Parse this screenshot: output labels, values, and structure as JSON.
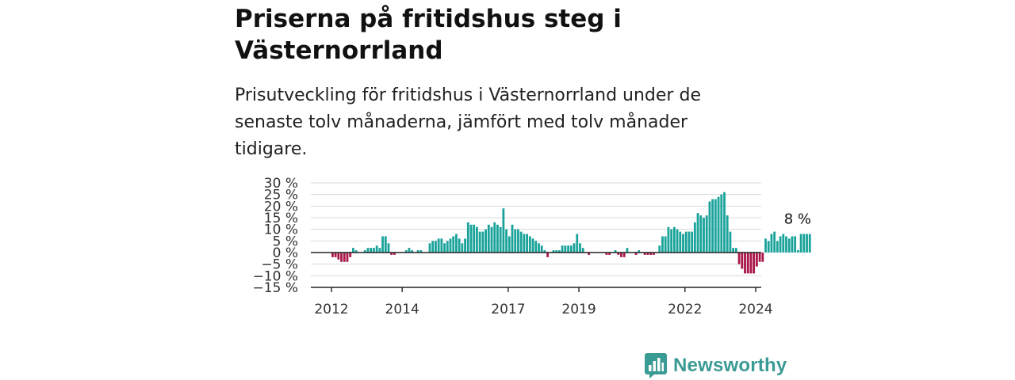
{
  "title": "Priserna på fritidshus steg i Västernorrland",
  "subtitle": "Prisutveckling för fritidshus i Västernorrland under de senaste tolv månaderna, jämfört med tolv månader tidigare.",
  "brand": {
    "name": "Newsworthy",
    "color": "#3a9a94",
    "icon": "newsworthy-logo-icon"
  },
  "colors": {
    "positive": "#1aa39a",
    "negative": "#a8164a",
    "grid": "#d8d8d8",
    "axis": "#222222",
    "text": "#333333"
  },
  "chart_data": {
    "type": "bar",
    "title": "",
    "xlabel": "",
    "ylabel": "",
    "ylim": [
      -15,
      30
    ],
    "yticks": [
      30,
      25,
      20,
      15,
      10,
      5,
      0,
      -5,
      -10,
      -15
    ],
    "ytick_labels": [
      "30 %",
      "25 %",
      "20 %",
      "15 %",
      "10 %",
      "5 %",
      "0 %",
      "−5 %",
      "−10 %",
      "−15 %"
    ],
    "xtick_labels": [
      "2012",
      "2014",
      "2017",
      "2019",
      "2022",
      "2024"
    ],
    "xtick_years": [
      2012,
      2014,
      2017,
      2019,
      2022,
      2024
    ],
    "x_start": "2012-01",
    "x_end": "2025-05",
    "grid": true,
    "last_value_label": "8 %",
    "series": [
      {
        "values": [
          -2,
          -2,
          -3,
          -4,
          -4,
          -4,
          -2,
          2,
          1,
          0,
          0,
          1,
          2,
          2,
          2,
          3,
          2,
          7,
          7,
          4,
          -1,
          -1,
          0,
          0,
          0,
          1,
          2,
          1,
          0,
          1,
          1,
          0,
          0,
          4,
          5,
          5,
          6,
          6,
          4,
          5,
          6,
          7,
          8,
          6,
          4,
          6,
          13,
          12,
          12,
          11,
          9,
          9,
          10,
          12,
          11,
          13,
          12,
          11,
          19,
          10,
          7,
          12,
          10,
          10,
          9,
          8,
          8,
          7,
          6,
          5,
          4,
          3,
          1,
          -2,
          0,
          1,
          1,
          1,
          3,
          3,
          3,
          3,
          4,
          8,
          4,
          2,
          0,
          -1,
          0,
          0,
          0,
          0,
          0,
          -1,
          -1,
          0,
          1,
          -1,
          -2,
          -2,
          2,
          0,
          0,
          -1,
          1,
          0,
          -1,
          -1,
          -1,
          -1,
          0,
          3,
          7,
          7,
          11,
          10,
          11,
          10,
          9,
          8,
          9,
          9,
          9,
          13,
          17,
          16,
          15,
          16,
          22,
          23,
          23,
          24,
          25,
          26,
          16,
          9,
          2,
          2,
          -5,
          -7,
          -9,
          -9,
          -9,
          -9,
          -6,
          -4,
          -4,
          6,
          5,
          8,
          9,
          5,
          7,
          8,
          7,
          6,
          7,
          7,
          1,
          8,
          8,
          8,
          8
        ]
      }
    ]
  }
}
